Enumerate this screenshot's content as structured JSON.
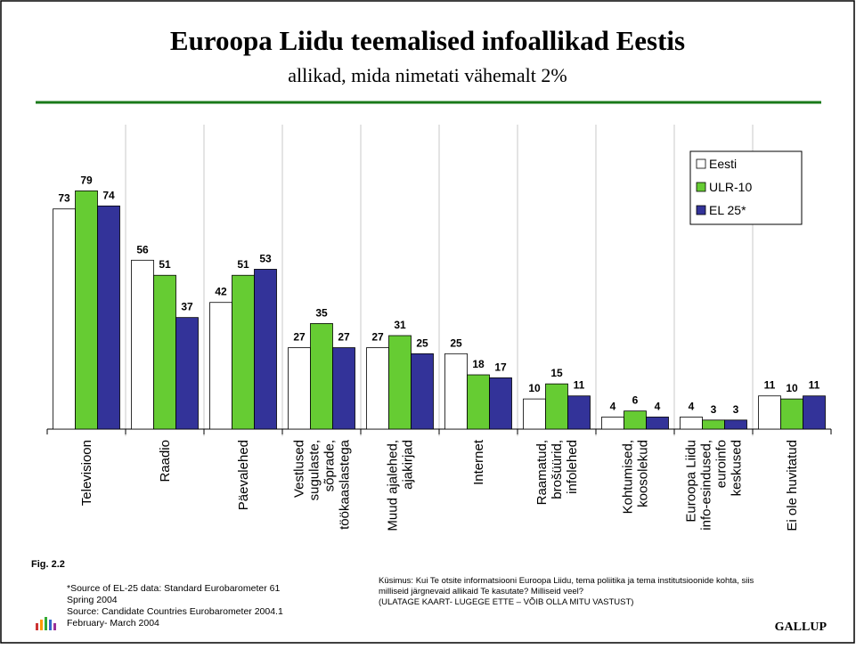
{
  "chart_data": {
    "type": "bar",
    "title": "Euroopa Liidu teemalised infoallikad Eestis",
    "subtitle": "allikad, mida nimetati vähemalt 2%",
    "categories": [
      "Televisioon",
      "Raadio",
      "Päevalehed",
      "Vestlused\nsugulaste,\nsõprade,\ntöökaaslastega",
      "Muud ajalehed,\najakirjad",
      "Internet",
      "Raamatud,\nbrošüürid,\ninfolehed",
      "Kohtumised,\nkoosolekud",
      "Euroopa Liidu\ninfo-esindused,\neuroinfo\nkeskused",
      "Ei ole huvitatud"
    ],
    "series": [
      {
        "name": "Eesti",
        "color": "#ffffff",
        "values": [
          73,
          56,
          42,
          27,
          27,
          25,
          10,
          4,
          4,
          11
        ]
      },
      {
        "name": "ULR-10",
        "color": "#66cc33",
        "values": [
          79,
          51,
          51,
          35,
          31,
          18,
          15,
          6,
          3,
          10
        ]
      },
      {
        "name": "EL 25*",
        "color": "#333399",
        "values": [
          74,
          37,
          53,
          27,
          25,
          17,
          11,
          4,
          3,
          11
        ]
      }
    ],
    "ylim": [
      0,
      80
    ],
    "legend": "top-right",
    "figure": "Fig. 2.2",
    "source_notes": [
      "*Source of EL-25 data: Standard Eurobarometer 61",
      "Spring  2004",
      "Source: Candidate Countries Eurobarometer 2004.1",
      "February- March  2004"
    ],
    "question": [
      "Küsimus:  Kui Te otsite informatsiooni Euroopa Liidu, tema poliitika ja tema institutsioonide kohta, siis",
      "milliseid järgnevaid allikaid Te kasutate? Milliseid veel?",
      "(ULATAGE KAART- LUGEGE ETTE – VÕIB OLLA MITU VASTUST)"
    ],
    "brand": "GALLUP"
  }
}
